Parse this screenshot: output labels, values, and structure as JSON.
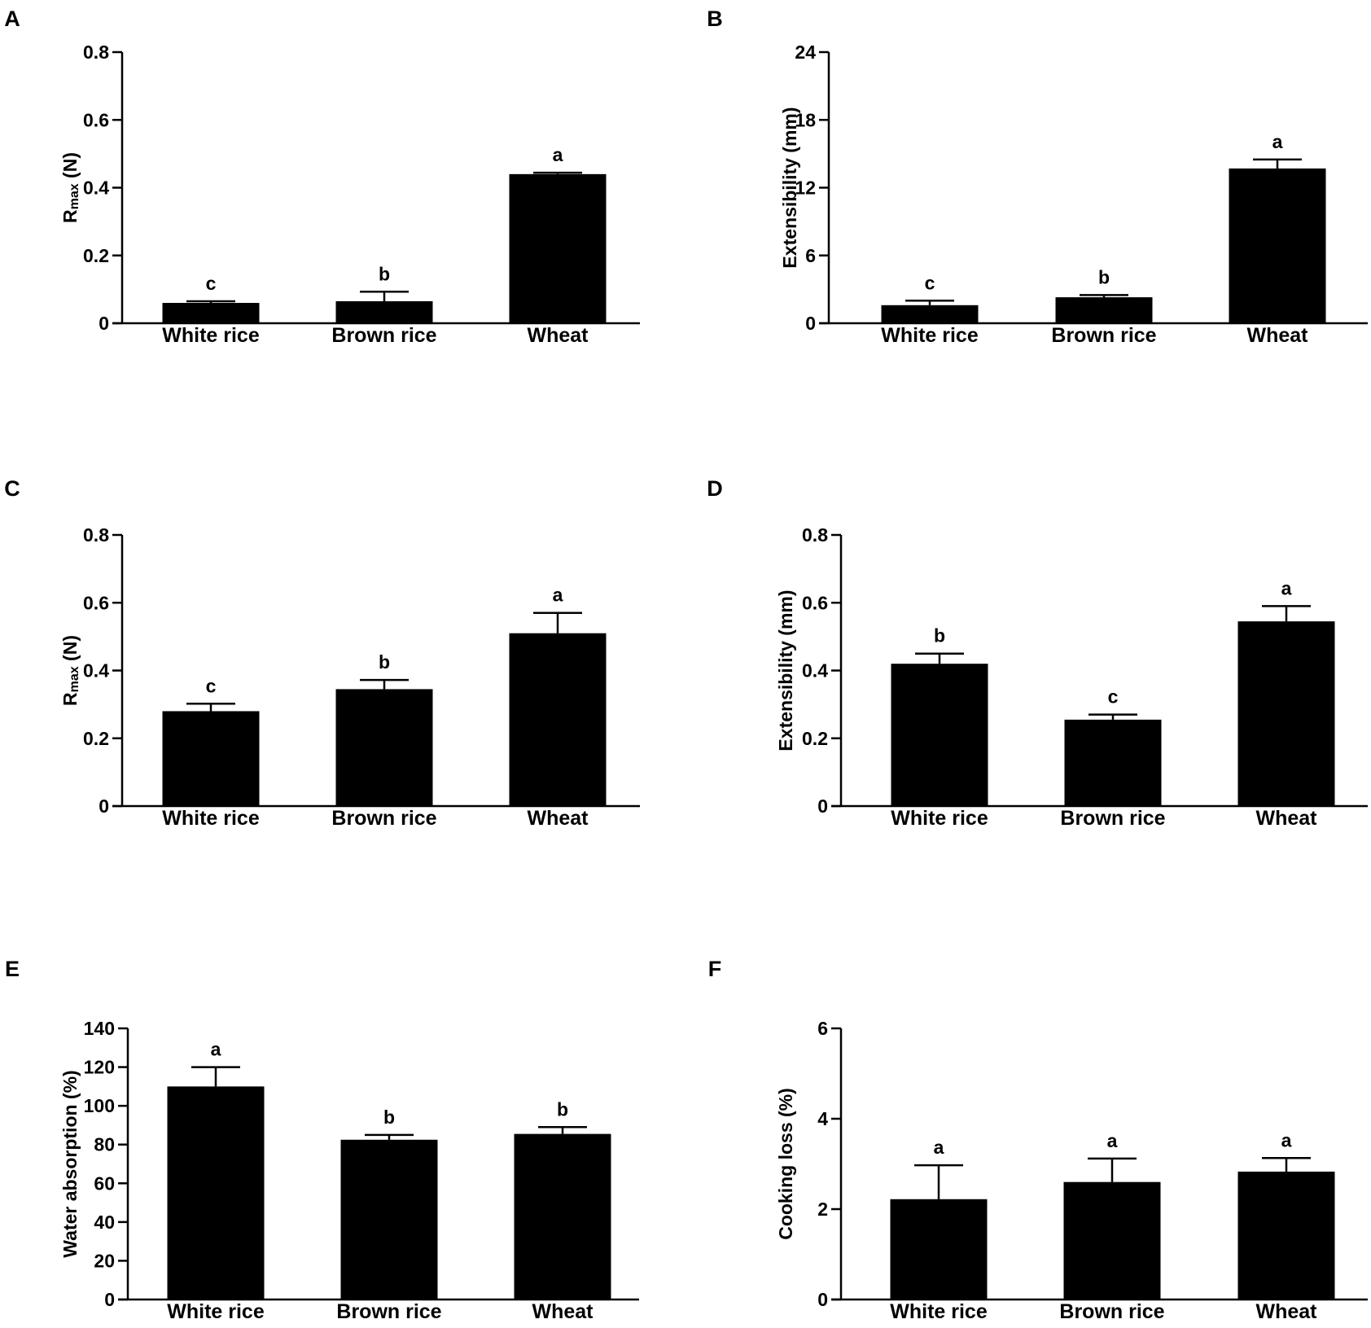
{
  "figure": {
    "panels": [
      "A",
      "B",
      "C",
      "D",
      "E",
      "F"
    ]
  },
  "chart_data": [
    {
      "type": "bar",
      "panel": "A",
      "ylabel_main": "R",
      "ylabel_sub": "max",
      "ylabel_unit": " (N)",
      "categories": [
        "White rice",
        "Brown rice",
        "Wheat"
      ],
      "values": [
        0.06,
        0.065,
        0.44
      ],
      "errors": [
        0.005,
        0.028,
        0.004
      ],
      "letters": [
        "c",
        "b",
        "a"
      ],
      "ylim": [
        0,
        0.8
      ],
      "yticks": [
        0,
        0.2,
        0.4,
        0.6,
        0.8
      ],
      "ytick_labels": [
        "0",
        "0.2",
        "0.4",
        "0.6",
        "0.8"
      ],
      "color": "#000000"
    },
    {
      "type": "bar",
      "panel": "B",
      "ylabel": "Extensibility (mm)",
      "categories": [
        "White rice",
        "Brown rice",
        "Wheat"
      ],
      "values": [
        1.6,
        2.3,
        13.7
      ],
      "errors": [
        0.4,
        0.2,
        0.8
      ],
      "letters": [
        "c",
        "b",
        "a"
      ],
      "ylim": [
        0,
        24
      ],
      "yticks": [
        0,
        6,
        12,
        18,
        24
      ],
      "ytick_labels": [
        "0",
        "6",
        "12",
        "18",
        "24"
      ],
      "color": "#000000"
    },
    {
      "type": "bar",
      "panel": "C",
      "ylabel_main": "R",
      "ylabel_sub": "max",
      "ylabel_unit": " (N)",
      "categories": [
        "White rice",
        "Brown rice",
        "Wheat"
      ],
      "values": [
        0.28,
        0.345,
        0.51
      ],
      "errors": [
        0.022,
        0.027,
        0.06
      ],
      "letters": [
        "c",
        "b",
        "a"
      ],
      "ylim": [
        0,
        0.8
      ],
      "yticks": [
        0,
        0.2,
        0.4,
        0.6,
        0.8
      ],
      "ytick_labels": [
        "0",
        "0.2",
        "0.4",
        "0.6",
        "0.8"
      ],
      "color": "#000000"
    },
    {
      "type": "bar",
      "panel": "D",
      "ylabel": "Extensibility (mm)",
      "categories": [
        "White rice",
        "Brown rice",
        "Wheat"
      ],
      "values": [
        0.42,
        0.255,
        0.545
      ],
      "errors": [
        0.03,
        0.015,
        0.045
      ],
      "letters": [
        "b",
        "c",
        "a"
      ],
      "ylim": [
        0,
        0.8
      ],
      "yticks": [
        0,
        0.2,
        0.4,
        0.6,
        0.8
      ],
      "ytick_labels": [
        "0",
        "0.2",
        "0.4",
        "0.6",
        "0.8"
      ],
      "color": "#000000"
    },
    {
      "type": "bar",
      "panel": "E",
      "ylabel": "Water absorption (%)",
      "categories": [
        "White rice",
        "Brown rice",
        "Wheat"
      ],
      "values": [
        110,
        82.5,
        85.5
      ],
      "errors": [
        10,
        2.5,
        3.5
      ],
      "letters": [
        "a",
        "b",
        "b"
      ],
      "ylim": [
        0,
        140
      ],
      "yticks": [
        0,
        20,
        40,
        60,
        80,
        100,
        120,
        140
      ],
      "ytick_labels": [
        "0",
        "20",
        "40",
        "60",
        "80",
        "100",
        "120",
        "140"
      ],
      "color": "#000000"
    },
    {
      "type": "bar",
      "panel": "F",
      "ylabel": "Cooking loss (%)",
      "categories": [
        "White rice",
        "Brown rice",
        "Wheat"
      ],
      "values": [
        2.22,
        2.6,
        2.83
      ],
      "errors": [
        0.75,
        0.52,
        0.3
      ],
      "letters": [
        "a",
        "a",
        "a"
      ],
      "ylim": [
        0,
        6
      ],
      "yticks": [
        0,
        2,
        4,
        6
      ],
      "ytick_labels": [
        "0",
        "2",
        "4",
        "6"
      ],
      "color": "#000000"
    }
  ]
}
